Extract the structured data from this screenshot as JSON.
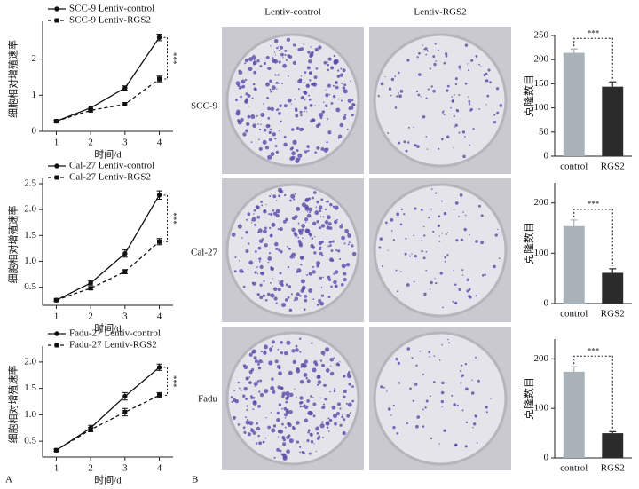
{
  "panel_labels": [
    "A",
    "B"
  ],
  "photos": {
    "columns": [
      "Lentiv-control",
      "Lentiv-RGS2"
    ],
    "rows": [
      "SCC-9",
      "Cal-27",
      "Fadu"
    ]
  },
  "chart_data": [
    {
      "type": "line",
      "x": [
        1,
        2,
        3,
        4
      ],
      "xlim": [
        0.6,
        4.4
      ],
      "xticks": [
        1,
        2,
        3,
        4
      ],
      "ylim": [
        0,
        2.9
      ],
      "yticks": [
        0,
        1,
        2
      ],
      "xlabel": "时间/d",
      "ylabel": "细胞相对增殖速率",
      "annotation": "***",
      "series": [
        {
          "name": "SCC-9 Lentiv-control",
          "color": "#111111",
          "dashed": false,
          "marker": "circle",
          "values": [
            0.28,
            0.65,
            1.2,
            2.6
          ],
          "errors": [
            0.03,
            0.05,
            0.06,
            0.09
          ]
        },
        {
          "name": "SCC-9 Lentiv-RGS2",
          "color": "#111111",
          "dashed": true,
          "marker": "square",
          "values": [
            0.28,
            0.58,
            0.75,
            1.45
          ],
          "errors": [
            0.03,
            0.04,
            0.05,
            0.08
          ]
        }
      ]
    },
    {
      "type": "line",
      "x": [
        1,
        2,
        3,
        4
      ],
      "xlim": [
        0.6,
        4.4
      ],
      "xticks": [
        1,
        2,
        3,
        4
      ],
      "ylim": [
        0.15,
        2.5
      ],
      "yticks": [
        0.5,
        {
          "value": 1,
          "label": "1.0"
        },
        1.5,
        {
          "value": 2,
          "label": "2.0"
        },
        2.5
      ],
      "xlabel": "时间/d",
      "ylabel": "细胞相对增殖速率",
      "annotation": "***",
      "series": [
        {
          "name": "Cal-27 Lentiv-control",
          "color": "#111111",
          "dashed": false,
          "marker": "circle",
          "values": [
            0.25,
            0.58,
            1.15,
            2.28
          ],
          "errors": [
            0.02,
            0.04,
            0.07,
            0.08
          ]
        },
        {
          "name": "Cal-27 Lentiv-RGS2",
          "color": "#111111",
          "dashed": true,
          "marker": "square",
          "values": [
            0.25,
            0.48,
            0.8,
            1.38
          ],
          "errors": [
            0.02,
            0.03,
            0.04,
            0.06
          ]
        }
      ]
    },
    {
      "type": "line",
      "x": [
        1,
        2,
        3,
        4
      ],
      "xlim": [
        0.6,
        4.4
      ],
      "xticks": [
        1,
        2,
        3,
        4
      ],
      "ylim": [
        0.2,
        2.2
      ],
      "yticks": [
        0.5,
        {
          "value": 1,
          "label": "1.0"
        },
        1.5,
        {
          "value": 2,
          "label": "2.0"
        }
      ],
      "xlabel": "时间/d",
      "ylabel": "细胞相对增殖速率",
      "annotation": "***",
      "series": [
        {
          "name": "Fadu-27 Lentiv-control",
          "color": "#111111",
          "dashed": false,
          "marker": "circle",
          "values": [
            0.33,
            0.75,
            1.35,
            1.9
          ],
          "errors": [
            0.02,
            0.05,
            0.07,
            0.06
          ]
        },
        {
          "name": "Fadu-27 Lentiv-RGS2",
          "color": "#111111",
          "dashed": true,
          "marker": "square",
          "values": [
            0.33,
            0.72,
            1.05,
            1.37
          ],
          "errors": [
            0.02,
            0.04,
            0.07,
            0.05
          ]
        }
      ]
    },
    {
      "type": "bar",
      "categories": [
        "control",
        "RGS2"
      ],
      "values": [
        214,
        144
      ],
      "errors": [
        8,
        10
      ],
      "colors": [
        "#a9b1b9",
        "#2b2b2b"
      ],
      "ylim": [
        0,
        250
      ],
      "yticks": [
        0,
        50,
        100,
        150,
        200,
        250
      ],
      "ylabel": "克隆数目",
      "annotation": "***"
    },
    {
      "type": "bar",
      "categories": [
        "control",
        "RGS2"
      ],
      "values": [
        154,
        61
      ],
      "errors": [
        12,
        8
      ],
      "colors": [
        "#a9b1b9",
        "#2b2b2b"
      ],
      "ylim": [
        0,
        240
      ],
      "yticks": [
        0,
        100,
        200
      ],
      "ylabel": "克隆数目",
      "annotation": "***"
    },
    {
      "type": "bar",
      "categories": [
        "control",
        "RGS2"
      ],
      "values": [
        174,
        50
      ],
      "errors": [
        10,
        3
      ],
      "colors": [
        "#a9b1b9",
        "#2b2b2b"
      ],
      "ylim": [
        0,
        240
      ],
      "yticks": [
        0,
        100,
        200
      ],
      "ylabel": "克隆数目",
      "annotation": "***"
    }
  ]
}
